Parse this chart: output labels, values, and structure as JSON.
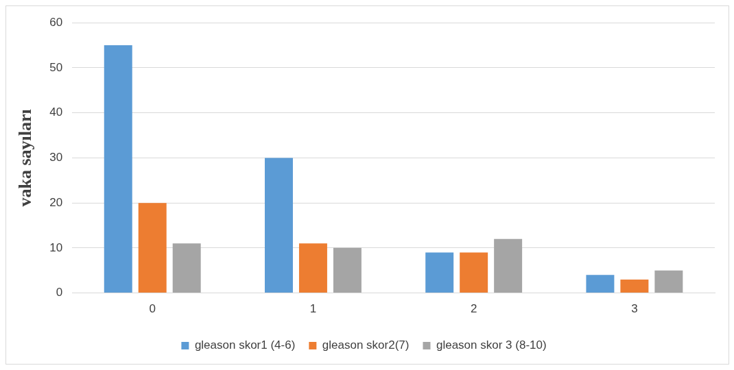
{
  "chart_data": {
    "type": "bar",
    "ylabel": "vaka sayıları",
    "categories": [
      "0",
      "1",
      "2",
      "3"
    ],
    "series": [
      {
        "name": "gleason skor1 (4-6)",
        "color": "#5b9bd5",
        "values": [
          55,
          30,
          9,
          4
        ]
      },
      {
        "name": "gleason skor2(7)",
        "color": "#ed7d31",
        "values": [
          20,
          11,
          9,
          3
        ]
      },
      {
        "name": "gleason skor 3 (8-10)",
        "color": "#a5a5a5",
        "values": [
          11,
          10,
          12,
          5
        ]
      }
    ],
    "ylim": [
      0,
      60
    ],
    "yticks": [
      0,
      10,
      20,
      30,
      40,
      50,
      60
    ],
    "grid": "y",
    "legend": "bottom"
  }
}
